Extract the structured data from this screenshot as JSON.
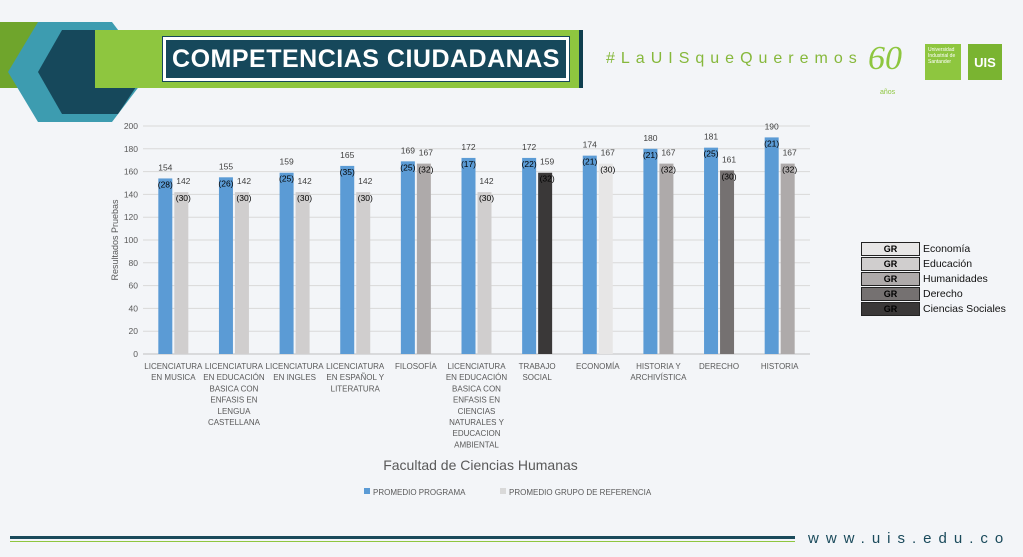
{
  "header": {
    "title": "COMPETENCIAS CIUDADANAS",
    "hashtag": "#LaUISqueQueremos",
    "anniversary_number": "60",
    "anniversary_word": "años",
    "university_name": "Universidad Industrial de Santander",
    "university_short": "UIS"
  },
  "footer": {
    "url": "www.uis.edu.co"
  },
  "colors": {
    "programa": "#5b9bd5",
    "economia": "#e7e6e6",
    "educacion": "#d0cece",
    "humanidades": "#aeaaaa",
    "derecho": "#757171",
    "ciencias_sociales": "#3a3838",
    "brand_green": "#8ec63f",
    "brand_dark": "#16485b"
  },
  "gr_legend": {
    "items": [
      {
        "tag": "GR",
        "label": "Economía",
        "color": "#e7e6e6"
      },
      {
        "tag": "GR",
        "label": "Educación",
        "color": "#d0cece"
      },
      {
        "tag": "GR",
        "label": "Humanidades",
        "color": "#aeaaaa"
      },
      {
        "tag": "GR",
        "label": "Derecho",
        "color": "#757171"
      },
      {
        "tag": "GR",
        "label": "Ciencias Sociales",
        "color": "#3a3838"
      }
    ]
  },
  "chart_data": {
    "type": "bar",
    "title": "Facultad de Ciencias Humanas",
    "xlabel": "Facultad de Ciencias Humanas",
    "ylabel": "Resultados Pruebas",
    "ylim": [
      0,
      200
    ],
    "yticks": [
      0,
      20,
      40,
      60,
      80,
      100,
      120,
      140,
      160,
      180,
      200
    ],
    "grid": true,
    "legend_position": "bottom",
    "categories": [
      [
        "LICENCIATURA",
        "EN MUSICA"
      ],
      [
        "LICENCIATURA",
        "EN EDUCACIÓN",
        "BASICA CON",
        "ENFASIS EN",
        "LENGUA",
        "CASTELLANA"
      ],
      [
        "LICENCIATURA",
        "EN INGLES"
      ],
      [
        "LICENCIATURA",
        "EN ESPAÑOL Y",
        "LITERATURA"
      ],
      [
        "FILOSOFÍA"
      ],
      [
        "LICENCIATURA",
        "EN EDUCACIÓN",
        "BASICA CON",
        "ENFASIS EN",
        "CIENCIAS",
        "NATURALES Y",
        "EDUCACION",
        "AMBIENTAL"
      ],
      [
        "TRABAJO",
        "SOCIAL"
      ],
      [
        "ECONOMÍA"
      ],
      [
        "HISTORIA Y",
        "ARCHIVÍSTICA"
      ],
      [
        "DERECHO"
      ],
      [
        "HISTORIA"
      ]
    ],
    "series": [
      {
        "name": "PROMEDIO PROGRAMA",
        "values": [
          154,
          155,
          159,
          165,
          169,
          172,
          172,
          174,
          180,
          181,
          190
        ],
        "annotations": [
          "(28)",
          "(26)",
          "(25)",
          "(35)",
          "(25)",
          "(17)",
          "(22)",
          "(21)",
          "(21)",
          "(25)",
          "(21)"
        ]
      },
      {
        "name": "PROMEDIO GRUPO DE REFERENCIA",
        "values": [
          142,
          142,
          142,
          142,
          167,
          142,
          159,
          167,
          167,
          161,
          167
        ],
        "annotations": [
          "(30)",
          "(30)",
          "(30)",
          "(30)",
          "(32)",
          "(30)",
          "(32)",
          "(30)",
          "(32)",
          "(30)",
          "(32)"
        ],
        "bar_colors": [
          "#d0cece",
          "#d0cece",
          "#d0cece",
          "#d0cece",
          "#aeaaaa",
          "#d0cece",
          "#3a3838",
          "#e7e6e6",
          "#aeaaaa",
          "#757171",
          "#aeaaaa"
        ]
      }
    ]
  }
}
